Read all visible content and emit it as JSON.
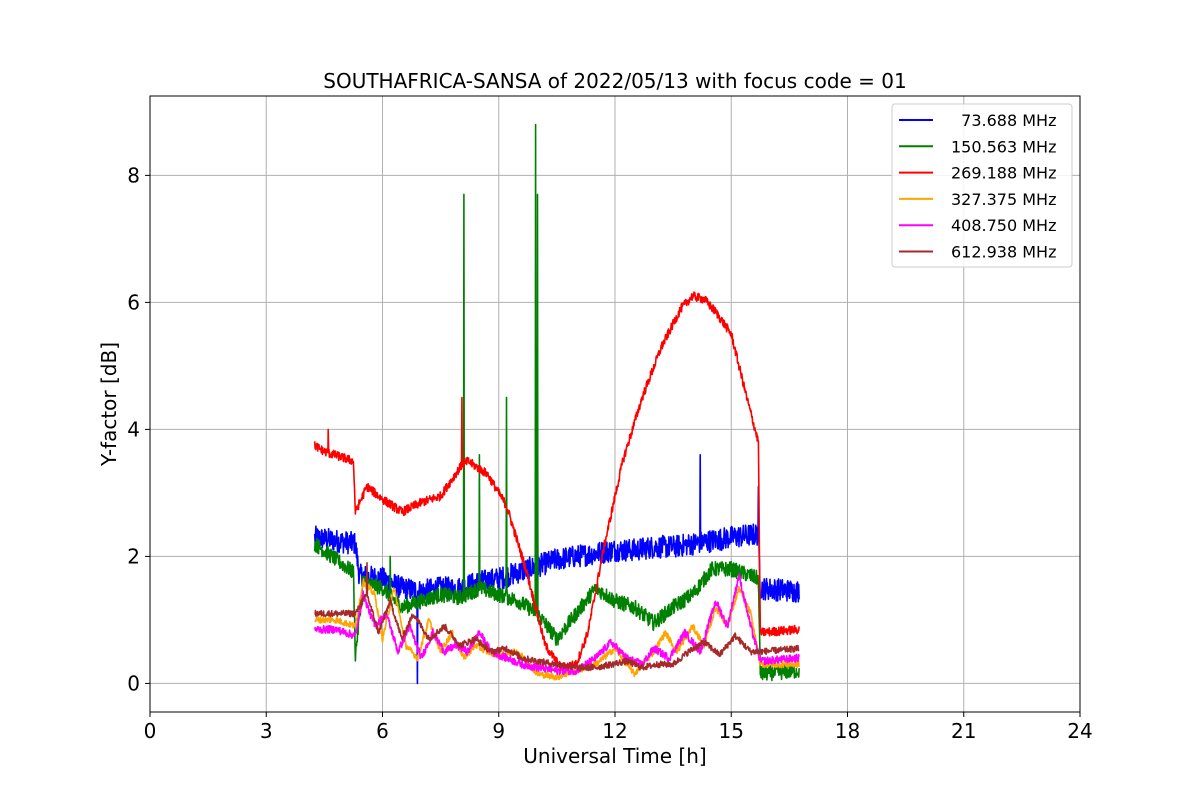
{
  "chart_data": {
    "type": "line",
    "title": "SOUTHAFRICA-SANSA of 2022/05/13 with focus code = 01",
    "xlabel": "Universal Time [h]",
    "ylabel": "Y-factor [dB]",
    "xlim": [
      0,
      24
    ],
    "ylim": [
      -0.45,
      9.25
    ],
    "xticks": [
      0,
      3,
      6,
      9,
      12,
      15,
      18,
      21,
      24
    ],
    "yticks": [
      0,
      2,
      4,
      6,
      8
    ],
    "grid": true,
    "legend_position": "top-right",
    "series": [
      {
        "name": "  73.688 MHz",
        "color": "#0000ff",
        "noise": 0.18,
        "points": [
          [
            4.25,
            2.3
          ],
          [
            5.3,
            2.2
          ],
          [
            5.4,
            1.7
          ],
          [
            6.0,
            1.65
          ],
          [
            6.5,
            1.5
          ],
          [
            7.0,
            1.45
          ],
          [
            7.5,
            1.5
          ],
          [
            8.0,
            1.5
          ],
          [
            8.5,
            1.6
          ],
          [
            9.0,
            1.65
          ],
          [
            9.5,
            1.75
          ],
          [
            10.0,
            1.85
          ],
          [
            10.5,
            1.95
          ],
          [
            11.0,
            2.0
          ],
          [
            11.5,
            2.05
          ],
          [
            12.0,
            2.1
          ],
          [
            12.5,
            2.1
          ],
          [
            13.0,
            2.15
          ],
          [
            13.5,
            2.15
          ],
          [
            14.0,
            2.2
          ],
          [
            14.5,
            2.25
          ],
          [
            15.0,
            2.3
          ],
          [
            15.7,
            2.35
          ],
          [
            15.75,
            1.5
          ],
          [
            16.75,
            1.45
          ]
        ],
        "spikes": [
          [
            6.9,
            0.0
          ],
          [
            10.0,
            3.1
          ],
          [
            14.2,
            3.6
          ],
          [
            15.7,
            3.1
          ]
        ]
      },
      {
        "name": "150.563 MHz",
        "color": "#008000",
        "noise": 0.12,
        "points": [
          [
            4.25,
            2.2
          ],
          [
            4.8,
            1.95
          ],
          [
            5.25,
            1.75
          ],
          [
            5.3,
            0.45
          ],
          [
            5.5,
            1.6
          ],
          [
            6.0,
            1.5
          ],
          [
            6.5,
            1.2
          ],
          [
            7.0,
            1.3
          ],
          [
            7.5,
            1.4
          ],
          [
            8.0,
            1.35
          ],
          [
            8.5,
            1.5
          ],
          [
            9.0,
            1.4
          ],
          [
            9.5,
            1.3
          ],
          [
            10.0,
            1.1
          ],
          [
            10.5,
            0.7
          ],
          [
            11.0,
            1.1
          ],
          [
            11.5,
            1.5
          ],
          [
            12.0,
            1.3
          ],
          [
            12.5,
            1.2
          ],
          [
            13.0,
            0.95
          ],
          [
            13.5,
            1.2
          ],
          [
            14.0,
            1.4
          ],
          [
            14.5,
            1.8
          ],
          [
            15.0,
            1.8
          ],
          [
            15.7,
            1.65
          ],
          [
            15.75,
            0.15
          ],
          [
            16.75,
            0.2
          ]
        ],
        "spikes": [
          [
            6.2,
            2.0
          ],
          [
            8.1,
            7.7
          ],
          [
            8.5,
            3.6
          ],
          [
            9.2,
            4.5
          ],
          [
            9.95,
            8.8
          ],
          [
            10.0,
            7.7
          ]
        ]
      },
      {
        "name": "269.188 MHz",
        "color": "#ff0000",
        "noise": 0.07,
        "points": [
          [
            4.25,
            3.75
          ],
          [
            4.5,
            3.65
          ],
          [
            5.0,
            3.55
          ],
          [
            5.25,
            3.5
          ],
          [
            5.3,
            2.7
          ],
          [
            5.6,
            3.1
          ],
          [
            6.0,
            2.9
          ],
          [
            6.5,
            2.7
          ],
          [
            7.0,
            2.85
          ],
          [
            7.5,
            2.95
          ],
          [
            8.0,
            3.4
          ],
          [
            8.2,
            3.5
          ],
          [
            8.7,
            3.3
          ],
          [
            9.2,
            2.8
          ],
          [
            9.7,
            1.8
          ],
          [
            10.2,
            0.6
          ],
          [
            10.6,
            0.25
          ],
          [
            11.0,
            0.3
          ],
          [
            11.3,
            0.8
          ],
          [
            11.7,
            2.1
          ],
          [
            12.2,
            3.5
          ],
          [
            12.7,
            4.5
          ],
          [
            13.2,
            5.3
          ],
          [
            13.7,
            5.9
          ],
          [
            14.0,
            6.1
          ],
          [
            14.3,
            6.05
          ],
          [
            14.6,
            5.85
          ],
          [
            15.0,
            5.5
          ],
          [
            15.4,
            4.5
          ],
          [
            15.7,
            3.8
          ],
          [
            15.75,
            0.8
          ],
          [
            16.75,
            0.85
          ]
        ],
        "spikes": [
          [
            4.6,
            4.0
          ],
          [
            8.05,
            4.5
          ]
        ]
      },
      {
        "name": "327.375 MHz",
        "color": "#ffa500",
        "noise": 0.05,
        "points": [
          [
            4.25,
            1.0
          ],
          [
            4.8,
            1.0
          ],
          [
            5.3,
            0.9
          ],
          [
            5.5,
            1.6
          ],
          [
            5.8,
            1.4
          ],
          [
            6.0,
            0.7
          ],
          [
            6.3,
            1.5
          ],
          [
            6.6,
            0.6
          ],
          [
            6.9,
            0.4
          ],
          [
            7.2,
            1.0
          ],
          [
            7.5,
            0.5
          ],
          [
            7.8,
            0.8
          ],
          [
            8.1,
            0.4
          ],
          [
            8.4,
            0.6
          ],
          [
            8.7,
            0.5
          ],
          [
            9.0,
            0.45
          ],
          [
            9.5,
            0.5
          ],
          [
            10.0,
            0.15
          ],
          [
            10.5,
            0.1
          ],
          [
            11.0,
            0.2
          ],
          [
            11.5,
            0.3
          ],
          [
            12.0,
            0.55
          ],
          [
            12.5,
            0.15
          ],
          [
            13.0,
            0.5
          ],
          [
            13.3,
            0.8
          ],
          [
            13.6,
            0.5
          ],
          [
            14.0,
            0.9
          ],
          [
            14.3,
            0.6
          ],
          [
            14.6,
            1.2
          ],
          [
            14.9,
            0.9
          ],
          [
            15.2,
            1.5
          ],
          [
            15.5,
            1.1
          ],
          [
            15.75,
            0.3
          ],
          [
            16.75,
            0.3
          ]
        ],
        "spikes": []
      },
      {
        "name": "408.750 MHz",
        "color": "#ff00ff",
        "noise": 0.06,
        "points": [
          [
            4.25,
            0.85
          ],
          [
            4.8,
            0.85
          ],
          [
            5.3,
            0.75
          ],
          [
            5.5,
            1.4
          ],
          [
            5.8,
            0.9
          ],
          [
            6.1,
            1.1
          ],
          [
            6.4,
            0.5
          ],
          [
            6.7,
            0.9
          ],
          [
            7.0,
            0.4
          ],
          [
            7.3,
            0.8
          ],
          [
            7.6,
            0.5
          ],
          [
            7.9,
            0.6
          ],
          [
            8.2,
            0.5
          ],
          [
            8.5,
            0.8
          ],
          [
            8.8,
            0.5
          ],
          [
            9.2,
            0.4
          ],
          [
            9.6,
            0.3
          ],
          [
            10.0,
            0.25
          ],
          [
            10.5,
            0.2
          ],
          [
            11.0,
            0.2
          ],
          [
            11.5,
            0.4
          ],
          [
            11.9,
            0.65
          ],
          [
            12.3,
            0.4
          ],
          [
            12.7,
            0.3
          ],
          [
            13.0,
            0.55
          ],
          [
            13.4,
            0.4
          ],
          [
            13.8,
            0.8
          ],
          [
            14.2,
            0.5
          ],
          [
            14.6,
            1.3
          ],
          [
            14.9,
            0.9
          ],
          [
            15.2,
            1.7
          ],
          [
            15.5,
            0.9
          ],
          [
            15.75,
            0.35
          ],
          [
            16.75,
            0.4
          ]
        ],
        "spikes": []
      },
      {
        "name": "612.938 MHz",
        "color": "#a52a2a",
        "noise": 0.05,
        "points": [
          [
            4.25,
            1.1
          ],
          [
            5.3,
            1.1
          ],
          [
            5.6,
            1.4
          ],
          [
            5.9,
            0.8
          ],
          [
            6.2,
            1.3
          ],
          [
            6.5,
            0.7
          ],
          [
            6.8,
            1.1
          ],
          [
            7.2,
            0.7
          ],
          [
            7.6,
            0.9
          ],
          [
            8.0,
            0.6
          ],
          [
            8.4,
            0.7
          ],
          [
            8.8,
            0.5
          ],
          [
            9.2,
            0.55
          ],
          [
            9.6,
            0.4
          ],
          [
            10.0,
            0.35
          ],
          [
            10.5,
            0.3
          ],
          [
            11.0,
            0.25
          ],
          [
            11.5,
            0.25
          ],
          [
            11.9,
            0.3
          ],
          [
            12.3,
            0.35
          ],
          [
            12.7,
            0.25
          ],
          [
            13.1,
            0.3
          ],
          [
            13.5,
            0.3
          ],
          [
            13.9,
            0.5
          ],
          [
            14.3,
            0.65
          ],
          [
            14.7,
            0.45
          ],
          [
            15.1,
            0.75
          ],
          [
            15.5,
            0.5
          ],
          [
            15.75,
            0.5
          ],
          [
            16.75,
            0.55
          ]
        ],
        "spikes": [
          [
            5.6,
            1.9
          ]
        ]
      }
    ]
  }
}
